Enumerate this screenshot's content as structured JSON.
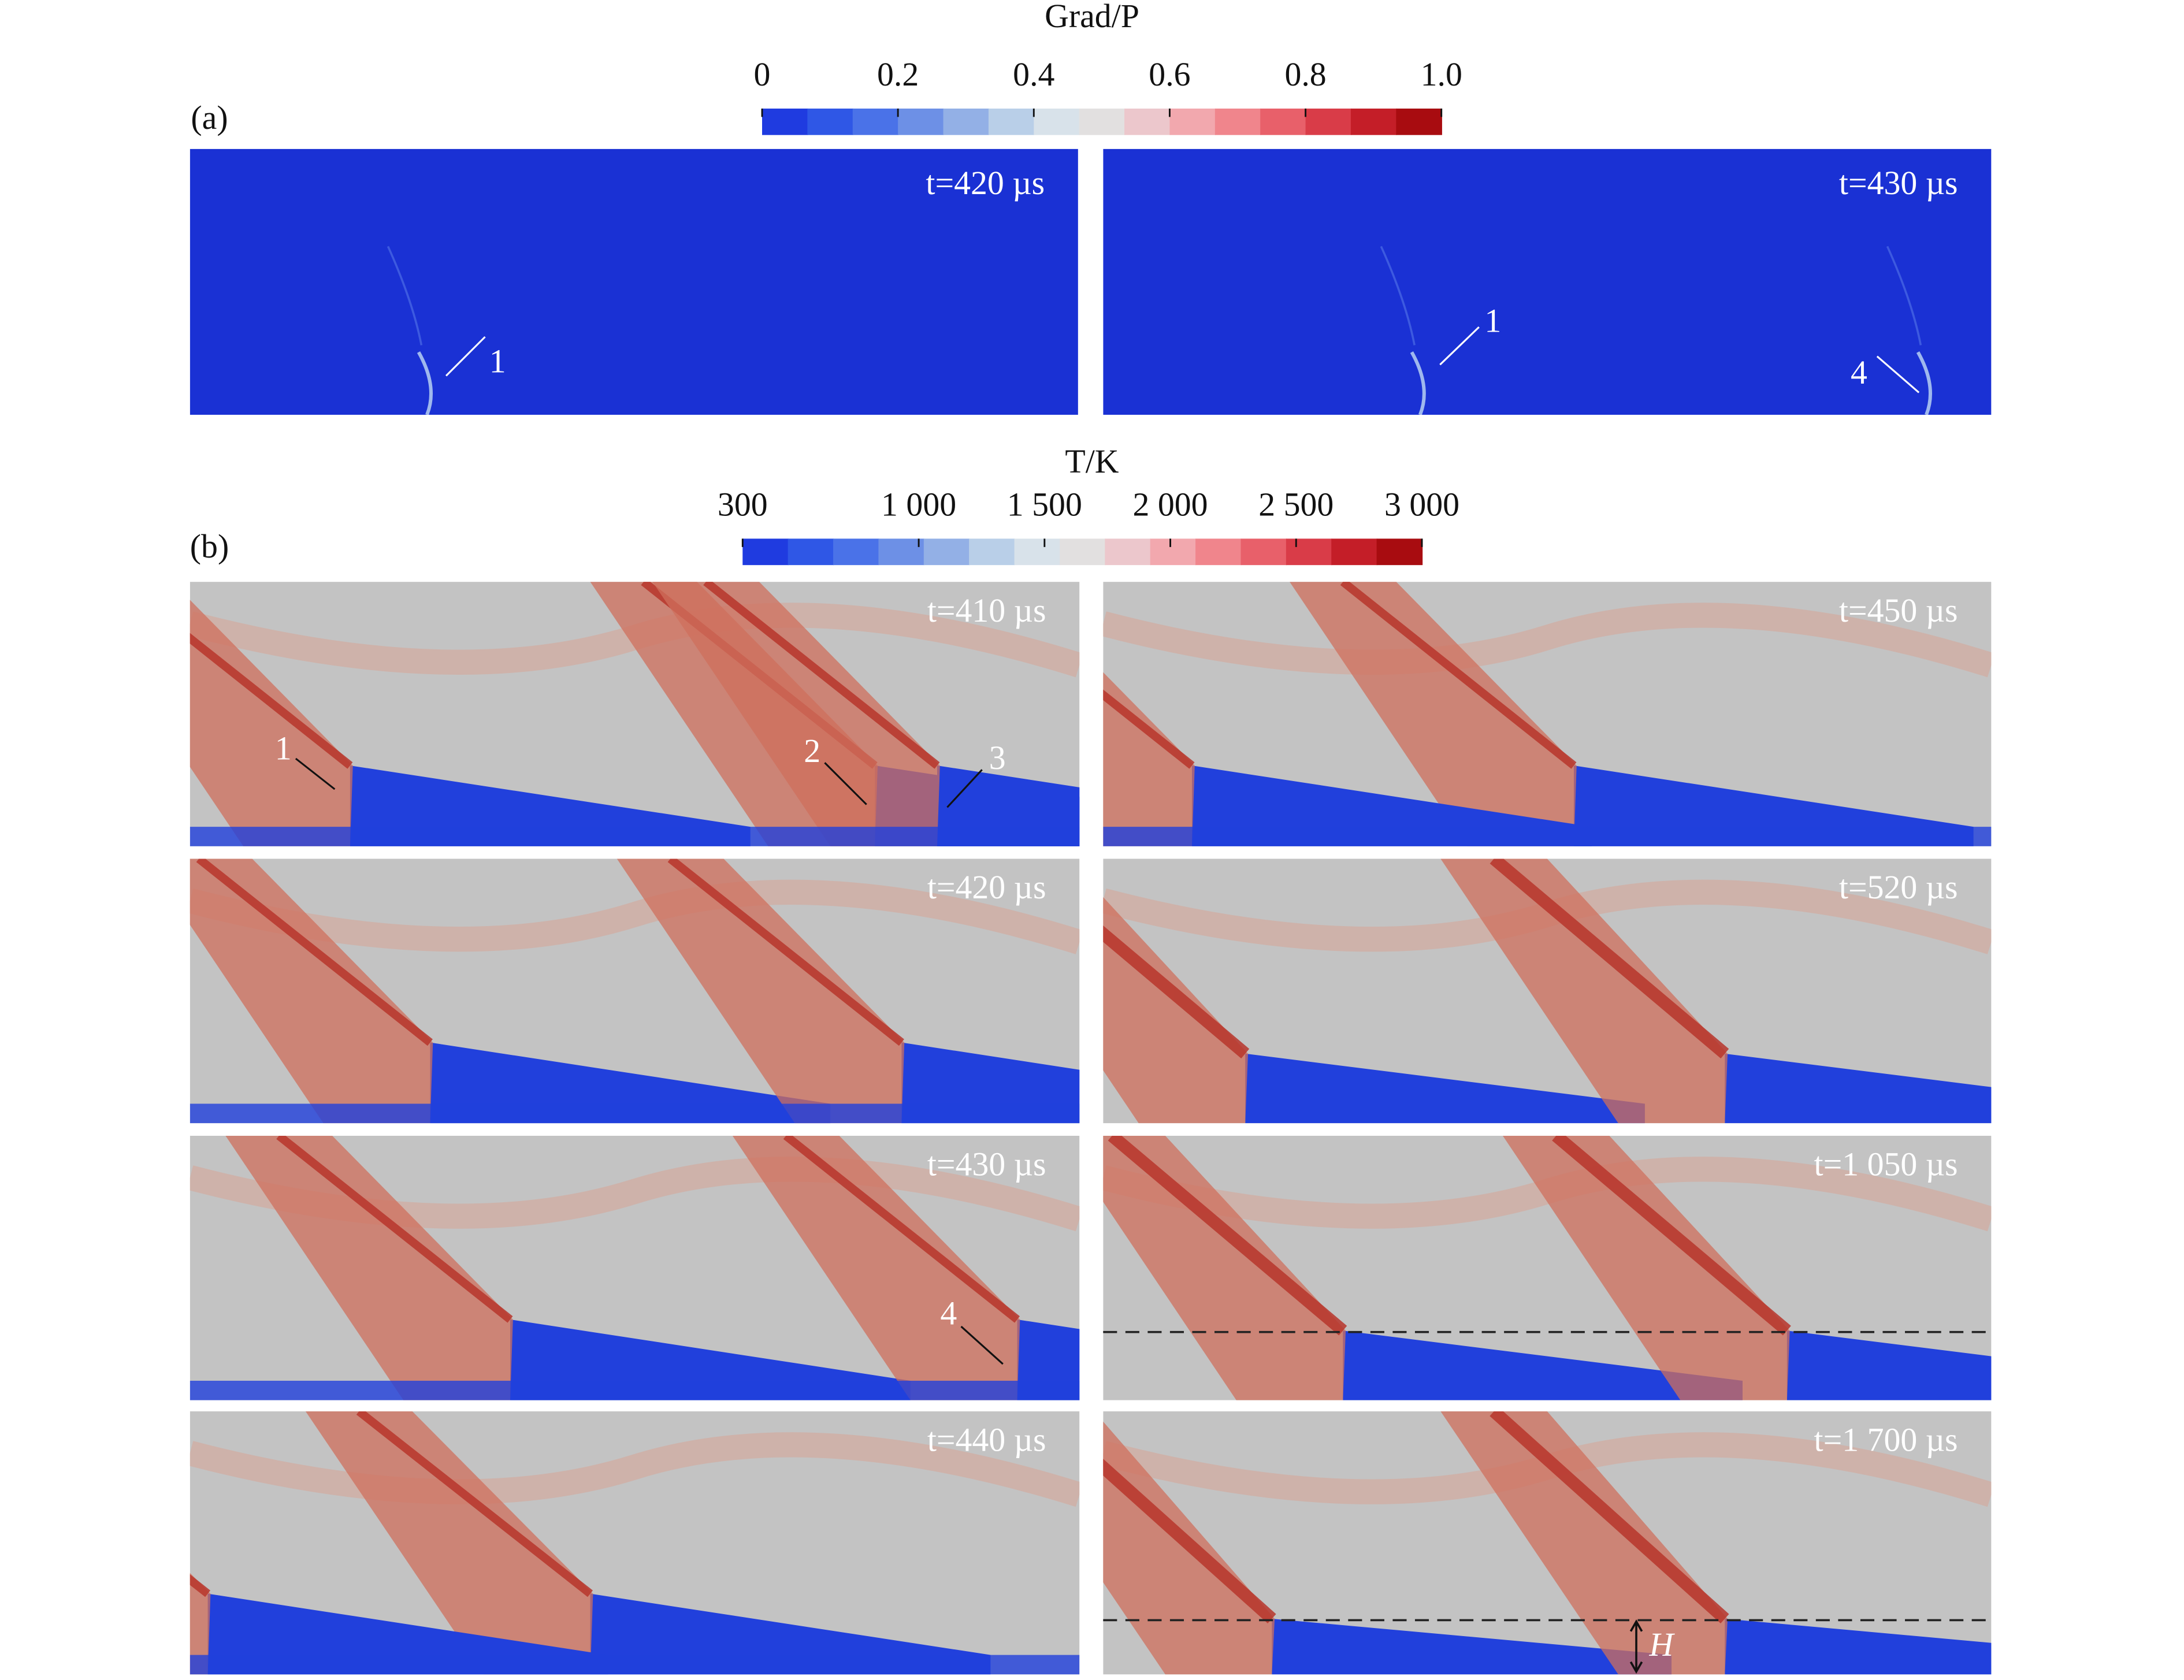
{
  "figure": {
    "panel_a": {
      "label": "(a)",
      "colorbar": {
        "title": "Grad/P",
        "lim": [
          0,
          1
        ],
        "ticks": [
          0,
          0.2,
          0.4,
          0.6,
          0.8,
          {
            "value": 1,
            "label": "1.0"
          }
        ],
        "colors": [
          "#1f3be0",
          "#2f57e6",
          "#4a72e8",
          "#6d90e6",
          "#93b0e6",
          "#b9cfe8",
          "#d8e2ea",
          "#e2e0e0",
          "#ecc7cc",
          "#f2a8ae",
          "#f0858c",
          "#e8606a",
          "#d93c48",
          "#c41e28",
          "#a80c10"
        ]
      },
      "panels": [
        {
          "time": "t=420 µs",
          "annotations": [
            "1"
          ]
        },
        {
          "time": "t=430 µs",
          "annotations": [
            "1",
            "4"
          ]
        }
      ]
    },
    "panel_b": {
      "label": "(b)",
      "colorbar": {
        "title": "T/K",
        "lim": [
          300,
          3000
        ],
        "ticks": [
          300,
          {
            "value": 1000,
            "label": "1 000"
          },
          {
            "value": 1500,
            "label": "1 500"
          },
          {
            "value": 2000,
            "label": "2 000"
          },
          {
            "value": 2500,
            "label": "2 500"
          },
          {
            "value": 3000,
            "label": "3 000"
          }
        ],
        "colors": [
          "#1f3be0",
          "#2f57e6",
          "#4a72e8",
          "#6d90e6",
          "#93b0e6",
          "#b9cfe8",
          "#d8e2ea",
          "#e2e0e0",
          "#ecc7cc",
          "#f2a8ae",
          "#f0858c",
          "#e8606a",
          "#d93c48",
          "#c41e28",
          "#a80c10"
        ]
      },
      "panels": [
        {
          "time": "t=410 µs",
          "annotations": [
            "1",
            "2",
            "3"
          ]
        },
        {
          "time": "t=420 µs",
          "annotations": []
        },
        {
          "time": "t=430 µs",
          "annotations": [
            "4"
          ]
        },
        {
          "time": "t=440 µs",
          "annotations": []
        },
        {
          "time": "t=450 µs",
          "annotations": []
        },
        {
          "time": "t=520 µs",
          "annotations": []
        },
        {
          "time": "t=1 050 µs",
          "annotations": []
        },
        {
          "time": "t=1 700 µs",
          "annotations": []
        }
      ],
      "height_label": "H"
    }
  }
}
